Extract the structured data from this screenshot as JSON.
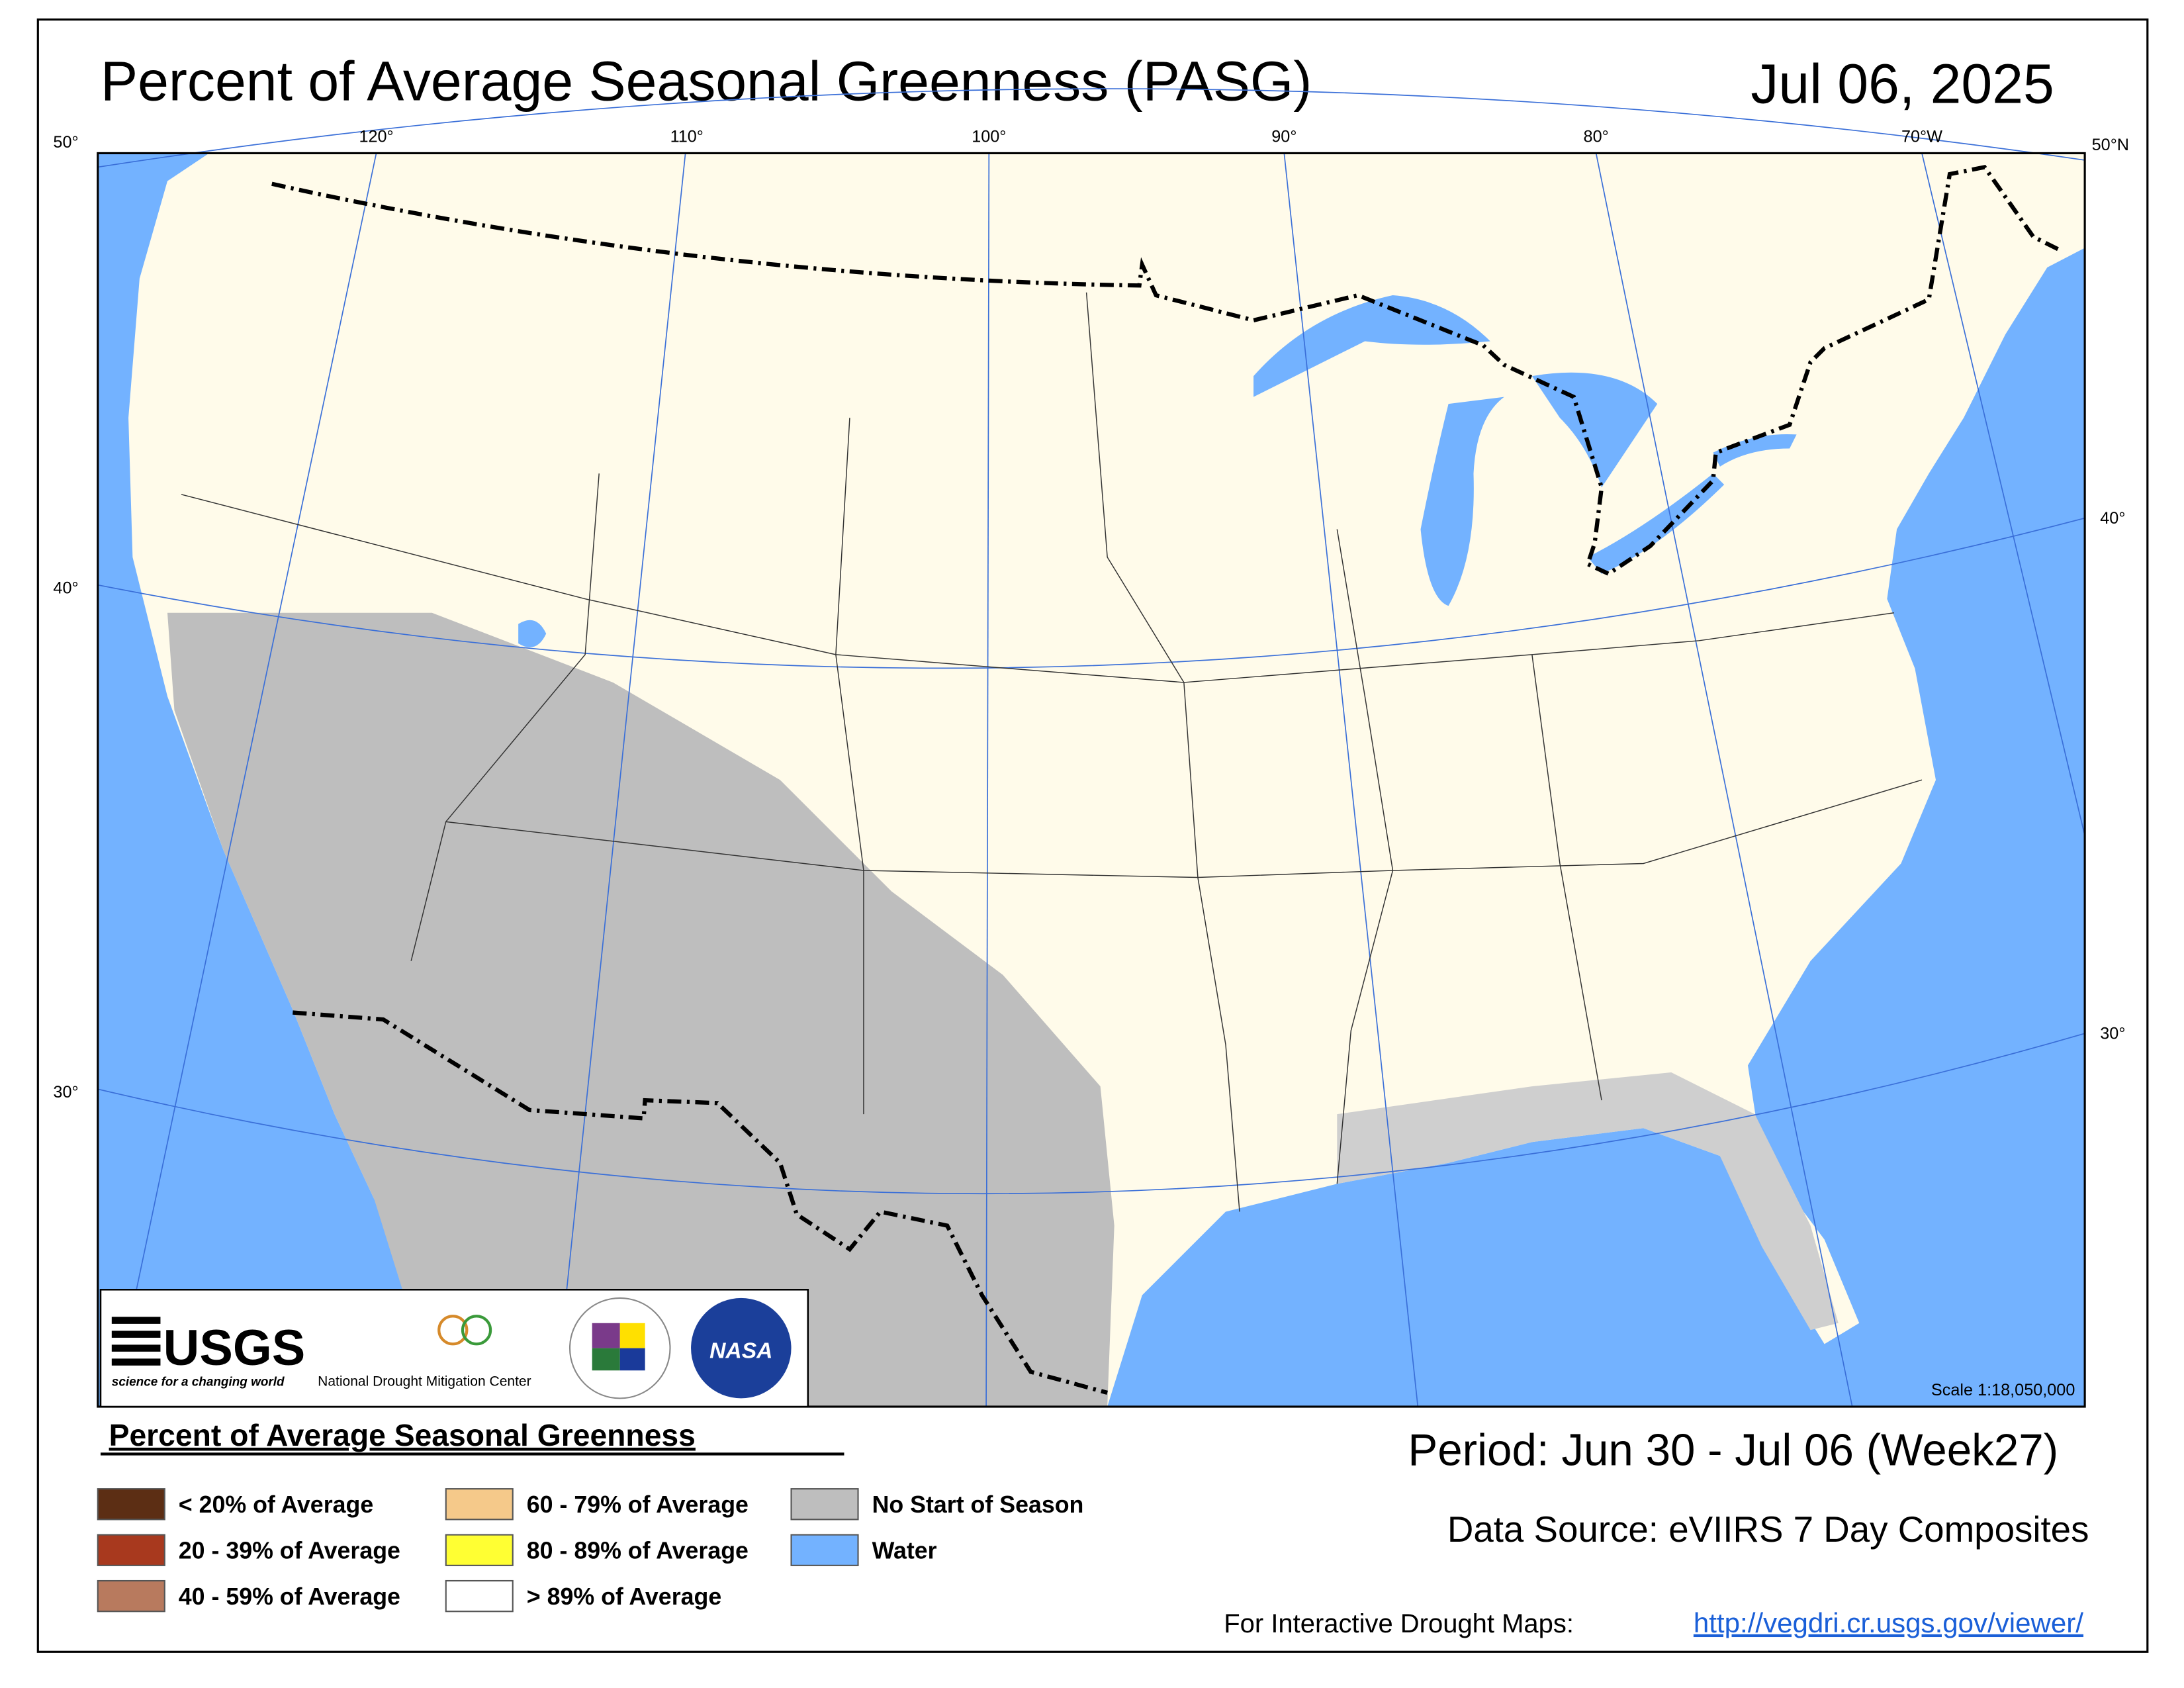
{
  "title": "Percent of Average Seasonal Greenness (PASG)",
  "date": "Jul 06, 2025",
  "graticule": {
    "top_left": "50°",
    "top_right": "50°N",
    "lon": [
      "120°",
      "110°",
      "100°",
      "90°",
      "80°",
      "70°W"
    ],
    "left": [
      "40°",
      "30°"
    ],
    "right": [
      "40°",
      "30°"
    ]
  },
  "map": {
    "scale": "Scale 1:18,050,000"
  },
  "logos": {
    "usgs": "USGS",
    "usgs_tagline": "science for a changing world",
    "ndmc": "National Drought Mitigation Center",
    "nasa": "NASA"
  },
  "legend": {
    "title": "Percent of Average Seasonal Greenness",
    "items": [
      {
        "label": "< 20% of Average",
        "color": "#5c2e14"
      },
      {
        "label": "20 - 39% of Average",
        "color": "#a8391e"
      },
      {
        "label": "40 - 59% of Average",
        "color": "#b87a5e"
      },
      {
        "label": "60 - 79% of Average",
        "color": "#f5c98a"
      },
      {
        "label": "80 - 89% of Average",
        "color": "#ffff33"
      },
      {
        "label": "> 89% of Average",
        "color": "#ffffff"
      },
      {
        "label": "No Start of Season",
        "color": "#bebebe"
      },
      {
        "label": "Water",
        "color": "#73b2ff"
      }
    ]
  },
  "period": "Period:  Jun 30 - Jul 06 (Week27)",
  "data_source": "Data Source:  eVIIRS 7 Day Composites",
  "interactive": {
    "label": "For Interactive Drought Maps:",
    "url": "http://vegdri.cr.usgs.gov/viewer/"
  }
}
